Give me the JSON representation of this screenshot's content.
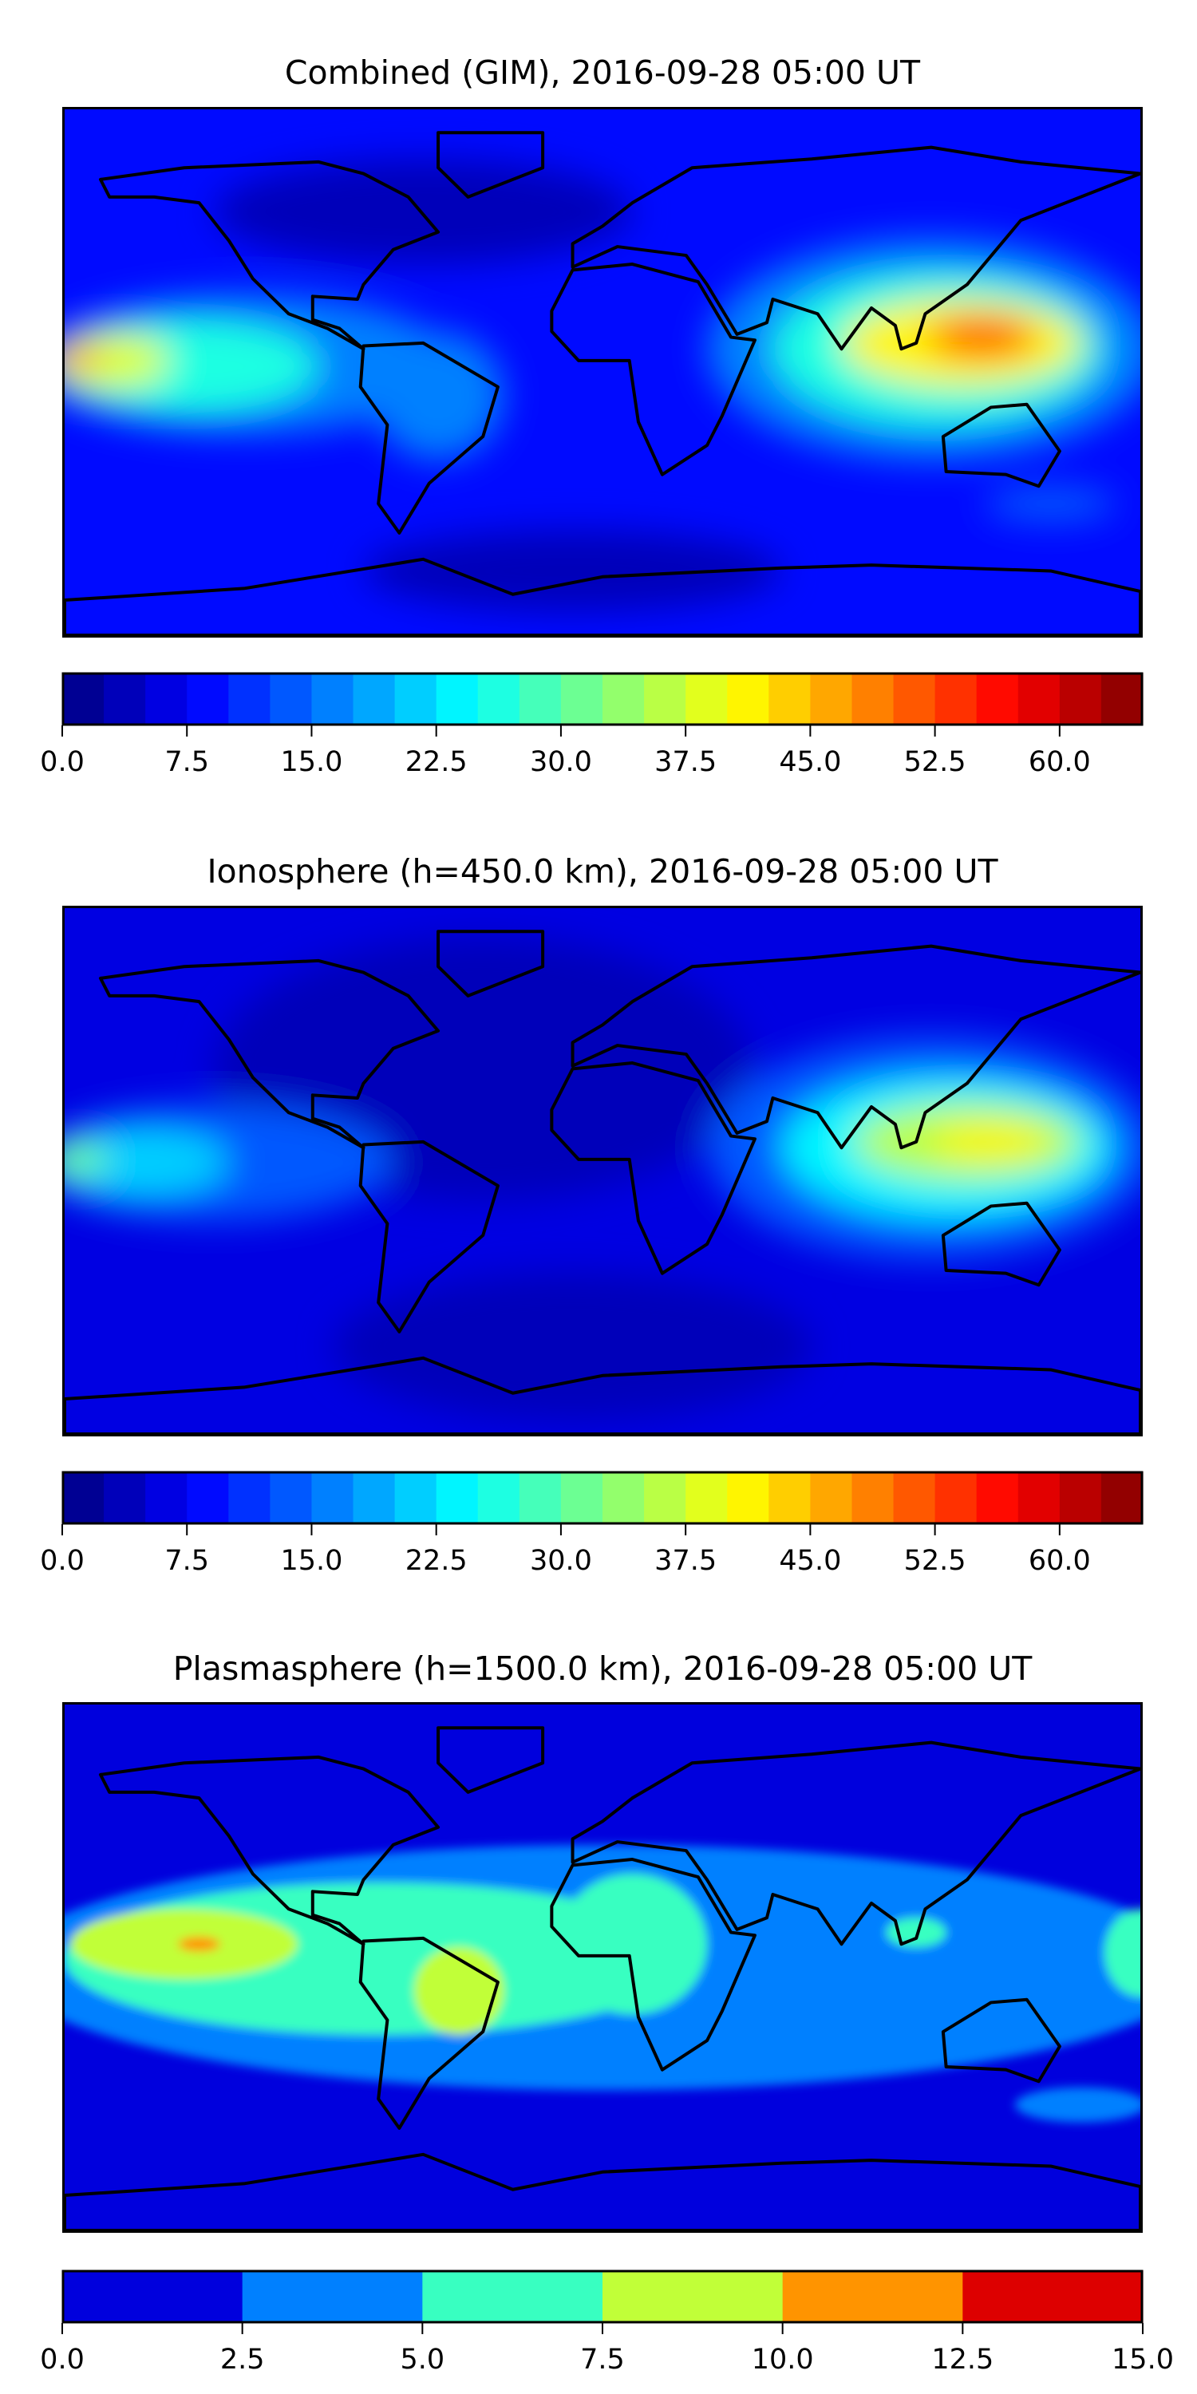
{
  "chart_data": [
    {
      "type": "heatmap",
      "title": "Combined (GIM), 2016-09-28 05:00 UT",
      "projection": "equirectangular, lon -180..180, lat -90..90",
      "colorbar": {
        "vmin": 0,
        "vmax": 65,
        "step": 2.5,
        "colormap": "jet",
        "ticks": [
          "0.0",
          "7.5",
          "15.0",
          "22.5",
          "30.0",
          "37.5",
          "45.0",
          "52.5",
          "60.0"
        ],
        "tick_values": [
          0,
          7.5,
          15,
          22.5,
          30,
          37.5,
          45,
          52.5,
          60
        ]
      },
      "background_value": 9,
      "features": [
        {
          "lon": -60,
          "lat": 55,
          "rx": 70,
          "ry": 18,
          "value": 3
        },
        {
          "lon": -10,
          "lat": -68,
          "rx": 70,
          "ry": 14,
          "value": 3
        },
        {
          "lon": -120,
          "lat": 3,
          "rx": 70,
          "ry": 24,
          "value": 15
        },
        {
          "lon": -55,
          "lat": -8,
          "rx": 22,
          "ry": 22,
          "value": 15
        },
        {
          "lon": -140,
          "lat": 2,
          "rx": 45,
          "ry": 16,
          "value": 27
        },
        {
          "lon": -165,
          "lat": 4,
          "rx": 20,
          "ry": 9,
          "value": 38
        },
        {
          "lon": -176,
          "lat": 4,
          "rx": 8,
          "ry": 5,
          "value": 45
        },
        {
          "lon": 110,
          "lat": 8,
          "rx": 75,
          "ry": 38,
          "value": 17
        },
        {
          "lon": 112,
          "lat": 8,
          "rx": 55,
          "ry": 26,
          "value": 27
        },
        {
          "lon": 120,
          "lat": 10,
          "rx": 40,
          "ry": 15,
          "value": 40
        },
        {
          "lon": 127,
          "lat": 12,
          "rx": 18,
          "ry": 7,
          "value": 50
        },
        {
          "lon": 150,
          "lat": -45,
          "rx": 22,
          "ry": 6,
          "value": 14
        }
      ]
    },
    {
      "type": "heatmap",
      "title": "Ionosphere  (h=450.0 km), 2016-09-28 05:00 UT",
      "projection": "equirectangular, lon -180..180, lat -90..90",
      "colorbar": {
        "vmin": 0,
        "vmax": 65,
        "step": 2.5,
        "colormap": "jet",
        "ticks": [
          "0.0",
          "7.5",
          "15.0",
          "22.5",
          "30.0",
          "37.5",
          "45.0",
          "52.5",
          "60.0"
        ],
        "tick_values": [
          0,
          7.5,
          15,
          22.5,
          30,
          37.5,
          45,
          52.5,
          60
        ]
      },
      "background_value": 7,
      "features": [
        {
          "lon": -40,
          "lat": 35,
          "rx": 90,
          "ry": 45,
          "value": 3
        },
        {
          "lon": -10,
          "lat": -60,
          "rx": 80,
          "ry": 25,
          "value": 3
        },
        {
          "lon": -130,
          "lat": 3,
          "rx": 60,
          "ry": 20,
          "value": 13
        },
        {
          "lon": -155,
          "lat": 3,
          "rx": 30,
          "ry": 12,
          "value": 22
        },
        {
          "lon": -176,
          "lat": 4,
          "rx": 10,
          "ry": 6,
          "value": 30
        },
        {
          "lon": 110,
          "lat": 8,
          "rx": 75,
          "ry": 38,
          "value": 14
        },
        {
          "lon": 115,
          "lat": 8,
          "rx": 55,
          "ry": 24,
          "value": 24
        },
        {
          "lon": 122,
          "lat": 10,
          "rx": 38,
          "ry": 13,
          "value": 36
        },
        {
          "lon": 130,
          "lat": 10,
          "rx": 20,
          "ry": 6,
          "value": 42
        }
      ]
    },
    {
      "type": "heatmap",
      "title": "Plasmasphere (h=1500.0 km), 2016-09-28 05:00 UT",
      "projection": "equirectangular, lon -180..180, lat -90..90",
      "colorbar": {
        "vmin": 0,
        "vmax": 15,
        "step": 2.5,
        "ticks": [
          "0.0",
          "2.5",
          "5.0",
          "7.5",
          "10.0",
          "12.5",
          "15.0"
        ],
        "tick_values": [
          0,
          2.5,
          5,
          7.5,
          10,
          12.5,
          15
        ],
        "colors": [
          "#0000dd",
          "#0080ff",
          "#38ffc1",
          "#c1ff38",
          "#ff9400",
          "#dd0000"
        ]
      },
      "background_value": 1,
      "features": [
        {
          "lon": 0,
          "lat": 0,
          "rx": 200,
          "ry": 42,
          "value": 3.5
        },
        {
          "lon": -75,
          "lat": 3,
          "rx": 105,
          "ry": 26,
          "value": 6
        },
        {
          "lon": 10,
          "lat": 8,
          "rx": 25,
          "ry": 24,
          "value": 6
        },
        {
          "lon": 105,
          "lat": 12,
          "rx": 10,
          "ry": 5,
          "value": 6
        },
        {
          "lon": 180,
          "lat": 5,
          "rx": 12,
          "ry": 15,
          "value": 6
        },
        {
          "lon": -140,
          "lat": 8,
          "rx": 38,
          "ry": 12,
          "value": 8.5
        },
        {
          "lon": -48,
          "lat": -8,
          "rx": 15,
          "ry": 15,
          "value": 8.5
        },
        {
          "lon": -135,
          "lat": 8,
          "rx": 7,
          "ry": 2.5,
          "value": 11
        },
        {
          "lon": 160,
          "lat": -47,
          "rx": 22,
          "ry": 6,
          "value": 3.5
        }
      ]
    }
  ]
}
